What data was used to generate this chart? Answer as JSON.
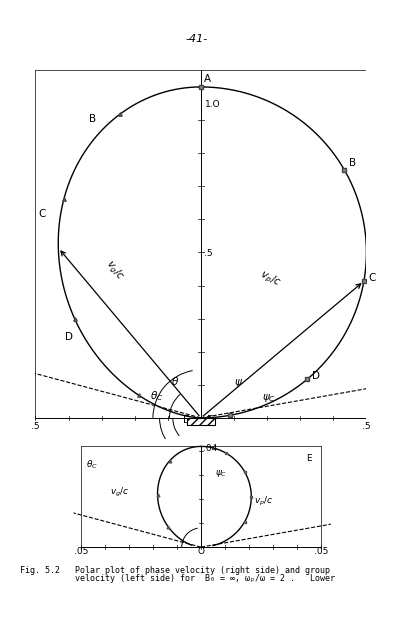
{
  "title": "-41-",
  "caption_line1": "Fig. 5.2   Polar plot of phase velocity (right side) and group",
  "caption_line2": "           velocity (left side) for  B₀ = ∞, ωₚ/ω = 2 .   Lower",
  "upper_xlim": [
    -0.5,
    0.5
  ],
  "upper_ylim": [
    -0.05,
    1.1
  ],
  "lower_xlim": [
    -0.05,
    0.05
  ],
  "lower_ylim": [
    -0.004,
    0.044
  ],
  "vp_psi_max_deg": 90,
  "vg_theta_max_deg": 90,
  "psi_c_deg": 80,
  "theta_c_deg": 75,
  "psi_arrow_deg": 50,
  "theta_arrow_deg": 40,
  "vp_marker_angles_deg": [
    0,
    30,
    50,
    70,
    85
  ],
  "vg_marker_angles_deg": [
    15,
    32,
    52,
    70
  ],
  "curve_lw": 1.0,
  "dash_lw": 0.8,
  "axis_lw": 0.7,
  "marker_size": 2.5
}
